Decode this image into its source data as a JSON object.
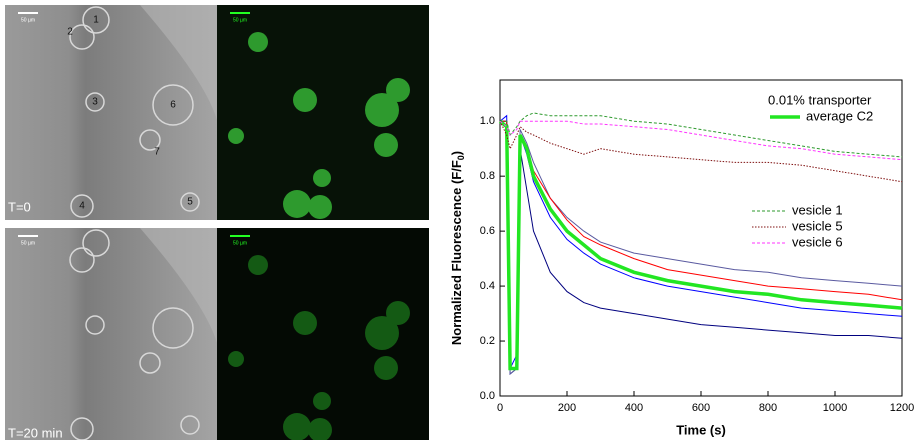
{
  "panels": {
    "time_labels": [
      "T=0",
      "T=20 min"
    ],
    "scale_bar": "50 µm",
    "vesicle_numbers": [
      "1",
      "2",
      "3",
      "4",
      "5",
      "6",
      "7"
    ]
  },
  "chart_data": {
    "type": "line",
    "x_label": "Time (s)",
    "y_label": {
      "main": "Normalized Fluorescence (F/F",
      "sub": "0",
      "end": ")"
    },
    "legend_title": "0.01% transporter",
    "x": [
      0,
      20,
      30,
      50,
      60,
      80,
      100,
      150,
      200,
      250,
      300,
      400,
      500,
      600,
      700,
      800,
      900,
      1000,
      1100,
      1200
    ],
    "series": [
      {
        "color": "#00007f",
        "style": "solid",
        "width": 1,
        "values": [
          1.0,
          1.0,
          0.08,
          0.1,
          0.9,
          0.75,
          0.6,
          0.45,
          0.38,
          0.34,
          0.32,
          0.3,
          0.28,
          0.26,
          0.25,
          0.24,
          0.23,
          0.22,
          0.22,
          0.21
        ]
      },
      {
        "color": "#0000ff",
        "style": "solid",
        "width": 1,
        "values": [
          1.0,
          1.02,
          0.1,
          0.15,
          0.95,
          0.88,
          0.78,
          0.65,
          0.57,
          0.52,
          0.48,
          0.43,
          0.4,
          0.38,
          0.36,
          0.34,
          0.32,
          0.31,
          0.3,
          0.29
        ]
      },
      {
        "color": "#5a5aa0",
        "style": "solid",
        "width": 1,
        "values": [
          1.0,
          1.0,
          0.08,
          0.1,
          0.97,
          0.92,
          0.85,
          0.72,
          0.65,
          0.6,
          0.56,
          0.52,
          0.5,
          0.48,
          0.46,
          0.45,
          0.43,
          0.42,
          0.41,
          0.4
        ]
      },
      {
        "color": "#ff0000",
        "style": "solid",
        "width": 1,
        "values": [
          1.0,
          1.0,
          0.1,
          0.1,
          0.95,
          0.9,
          0.82,
          0.72,
          0.64,
          0.58,
          0.55,
          0.5,
          0.46,
          0.44,
          0.42,
          0.4,
          0.39,
          0.38,
          0.37,
          0.35
        ]
      },
      {
        "name": "average C2",
        "color": "#22e622",
        "style": "solid",
        "width": 3.5,
        "values": [
          1.0,
          0.98,
          0.1,
          0.1,
          0.95,
          0.9,
          0.8,
          0.68,
          0.6,
          0.55,
          0.5,
          0.45,
          0.42,
          0.4,
          0.38,
          0.37,
          0.35,
          0.34,
          0.33,
          0.32
        ]
      },
      {
        "name": "vesicle 1",
        "color": "#2e9a2e",
        "style": "dashed",
        "width": 1,
        "values": [
          1.0,
          1.0,
          0.95,
          0.98,
          1.0,
          1.02,
          1.03,
          1.02,
          1.02,
          1.02,
          1.02,
          1.0,
          0.99,
          0.97,
          0.95,
          0.93,
          0.91,
          0.89,
          0.88,
          0.87
        ]
      },
      {
        "name": "vesicle 5",
        "color": "#7f1010",
        "style": "dotted",
        "width": 1,
        "values": [
          1.0,
          0.95,
          0.9,
          0.95,
          0.98,
          0.96,
          0.95,
          0.92,
          0.9,
          0.88,
          0.9,
          0.88,
          0.87,
          0.86,
          0.85,
          0.85,
          0.84,
          0.82,
          0.8,
          0.78
        ]
      },
      {
        "name": "vesicle 6",
        "color": "#ff33ff",
        "style": "dashed",
        "width": 1,
        "values": [
          1.0,
          0.98,
          0.95,
          0.97,
          1.0,
          1.0,
          1.0,
          1.0,
          1.0,
          0.99,
          0.99,
          0.98,
          0.97,
          0.95,
          0.93,
          0.91,
          0.9,
          0.88,
          0.87,
          0.86
        ]
      }
    ],
    "xlim": [
      0,
      1200
    ],
    "xticks": [
      0,
      200,
      400,
      600,
      800,
      1000,
      1200
    ],
    "ylim": [
      0,
      1.15
    ],
    "yticks": [
      {
        "value": 0,
        "label": "0.0"
      },
      0.2,
      0.4,
      0.6,
      0.8,
      {
        "value": 1,
        "label": "1.0"
      }
    ]
  }
}
